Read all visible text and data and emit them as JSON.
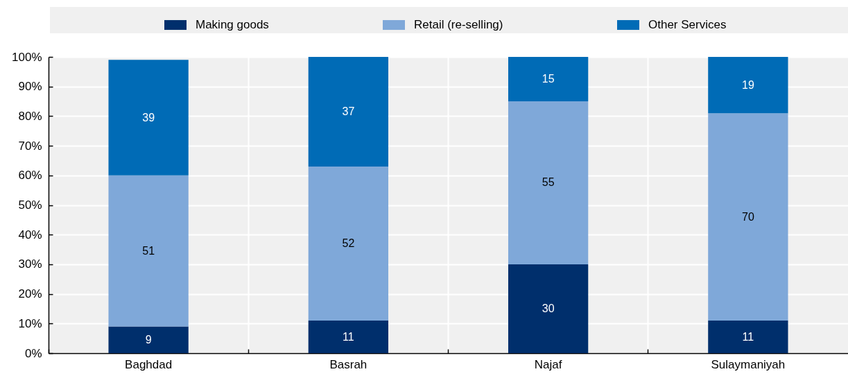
{
  "chart_data": {
    "type": "bar",
    "categories": [
      "Baghdad",
      "Basrah",
      "Najaf",
      "Sulaymaniyah"
    ],
    "series": [
      {
        "name": "Making goods",
        "color": "#002f6c",
        "values": [
          9,
          11,
          30,
          11
        ]
      },
      {
        "name": "Retail (re-selling)",
        "color": "#7fa8d9",
        "values": [
          51,
          52,
          55,
          70
        ]
      },
      {
        "name": "Other Services",
        "color": "#006bb6",
        "values": [
          39,
          37,
          15,
          19
        ]
      }
    ],
    "stacked": true,
    "ylim": [
      0,
      100
    ],
    "yticks": [
      {
        "value": 0,
        "label": "0%"
      },
      {
        "value": 10,
        "label": "10%"
      },
      {
        "value": 20,
        "label": "20%"
      },
      {
        "value": 30,
        "label": "30%"
      },
      {
        "value": 40,
        "label": "40%"
      },
      {
        "value": 50,
        "label": "50%"
      },
      {
        "value": 60,
        "label": "60%"
      },
      {
        "value": 70,
        "label": "70%"
      },
      {
        "value": 80,
        "label": "80%"
      },
      {
        "value": 90,
        "label": "90%"
      },
      {
        "value": 100,
        "label": "100%"
      }
    ],
    "grid": true,
    "legend": "top",
    "data_labels": true
  }
}
